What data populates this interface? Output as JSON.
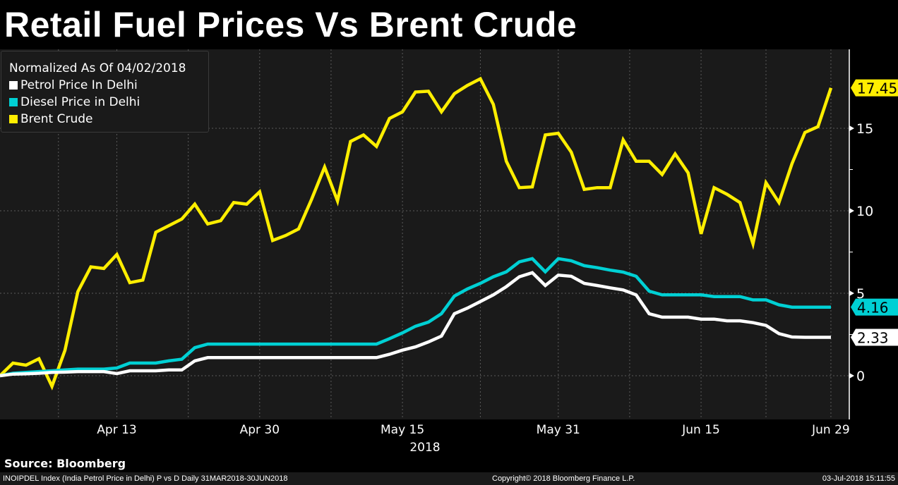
{
  "title": "Retail Fuel Prices Vs Brent Crude",
  "legend": {
    "heading": "Normalized As Of 04/02/2018",
    "items": [
      {
        "label": "Petrol Price In Delhi",
        "color": "#ffffff"
      },
      {
        "label": "Diesel Price in Delhi",
        "color": "#00d0d4"
      },
      {
        "label": "Brent Crude",
        "color": "#ffee00"
      }
    ]
  },
  "source": "Source: Bloomberg",
  "footer": {
    "left": "INOIPDEL Index (India Petrol Price in Delhi) P vs D  Daily 31MAR2018-30JUN2018",
    "center": "Copyright© 2018 Bloomberg Finance L.P.",
    "right": "03-Jul-2018 15:11:55"
  },
  "chart_data": {
    "type": "line",
    "title": "Retail Fuel Prices Vs Brent Crude",
    "xlabel": "2018",
    "ylabel": "",
    "ylim": [
      -2.5,
      20
    ],
    "y_ticks": [
      0,
      5,
      10,
      15
    ],
    "y_axis_side": "right",
    "x_ticks": [
      {
        "label": "Apr 13",
        "date": "2018-04-13"
      },
      {
        "label": "Apr 30",
        "date": "2018-04-30"
      },
      {
        "label": "May 15",
        "date": "2018-05-15"
      },
      {
        "label": "May 31",
        "date": "2018-05-31"
      },
      {
        "label": "Jun 15",
        "date": "2018-06-15"
      },
      {
        "label": "Jun 29",
        "date": "2018-06-29"
      }
    ],
    "year_label": "2018",
    "grid": true,
    "legend_position": "top-left",
    "x": [
      "2018-04-02",
      "2018-04-03",
      "2018-04-04",
      "2018-04-05",
      "2018-04-06",
      "2018-04-09",
      "2018-04-10",
      "2018-04-11",
      "2018-04-12",
      "2018-04-13",
      "2018-04-16",
      "2018-04-17",
      "2018-04-18",
      "2018-04-19",
      "2018-04-20",
      "2018-04-23",
      "2018-04-24",
      "2018-04-25",
      "2018-04-26",
      "2018-04-27",
      "2018-04-30",
      "2018-05-01",
      "2018-05-02",
      "2018-05-03",
      "2018-05-04",
      "2018-05-07",
      "2018-05-08",
      "2018-05-09",
      "2018-05-10",
      "2018-05-11",
      "2018-05-14",
      "2018-05-15",
      "2018-05-16",
      "2018-05-17",
      "2018-05-18",
      "2018-05-21",
      "2018-05-22",
      "2018-05-23",
      "2018-05-24",
      "2018-05-25",
      "2018-05-28",
      "2018-05-29",
      "2018-05-30",
      "2018-05-31",
      "2018-06-01",
      "2018-06-04",
      "2018-06-05",
      "2018-06-06",
      "2018-06-07",
      "2018-06-08",
      "2018-06-11",
      "2018-06-12",
      "2018-06-13",
      "2018-06-14",
      "2018-06-15",
      "2018-06-18",
      "2018-06-19",
      "2018-06-20",
      "2018-06-21",
      "2018-06-22",
      "2018-06-25",
      "2018-06-26",
      "2018-06-27",
      "2018-06-28",
      "2018-06-29"
    ],
    "series": [
      {
        "name": "Brent Crude",
        "color": "#ffee00",
        "last_label": "17.45",
        "values": [
          0,
          0.77,
          0.64,
          1.03,
          -0.64,
          1.54,
          5.1,
          6.6,
          6.5,
          7.35,
          5.64,
          5.8,
          8.7,
          9.1,
          9.5,
          10.4,
          9.2,
          9.4,
          10.5,
          10.4,
          11.15,
          8.2,
          8.5,
          8.9,
          10.7,
          12.65,
          10.6,
          14.2,
          14.6,
          13.9,
          15.6,
          16.0,
          17.2,
          17.25,
          16.0,
          17.1,
          17.6,
          18.0,
          16.45,
          13.0,
          11.4,
          11.45,
          14.6,
          14.7,
          13.55,
          11.3,
          11.4,
          11.4,
          14.3,
          13.0,
          13.0,
          12.2,
          13.45,
          12.3,
          8.6,
          11.4,
          11.0,
          10.5,
          8.0,
          11.7,
          10.5,
          12.85,
          14.75,
          15.1,
          17.45
        ]
      },
      {
        "name": "Diesel Price in Delhi",
        "color": "#00d0d4",
        "last_label": "4.16",
        "values": [
          0,
          0.15,
          0.2,
          0.25,
          0.3,
          0.35,
          0.4,
          0.4,
          0.4,
          0.47,
          0.77,
          0.77,
          0.77,
          0.9,
          1.0,
          1.7,
          1.92,
          1.92,
          1.92,
          1.92,
          1.92,
          1.92,
          1.92,
          1.92,
          1.92,
          1.92,
          1.92,
          1.92,
          1.92,
          1.92,
          2.25,
          2.6,
          3.0,
          3.25,
          3.76,
          4.83,
          5.26,
          5.6,
          6.0,
          6.3,
          6.9,
          7.1,
          6.3,
          7.1,
          6.97,
          6.67,
          6.55,
          6.4,
          6.28,
          6.03,
          5.13,
          4.9,
          4.9,
          4.9,
          4.9,
          4.8,
          4.8,
          4.8,
          4.6,
          4.6,
          4.3,
          4.16,
          4.16,
          4.16,
          4.16
        ]
      },
      {
        "name": "Petrol Price In Delhi",
        "color": "#ffffff",
        "last_label": "2.33",
        "values": [
          0,
          0.1,
          0.12,
          0.15,
          0.2,
          0.22,
          0.25,
          0.25,
          0.25,
          0.13,
          0.3,
          0.3,
          0.3,
          0.35,
          0.35,
          0.9,
          1.1,
          1.1,
          1.1,
          1.1,
          1.1,
          1.1,
          1.1,
          1.1,
          1.1,
          1.1,
          1.1,
          1.1,
          1.1,
          1.1,
          1.3,
          1.55,
          1.75,
          2.05,
          2.4,
          3.76,
          4.1,
          4.5,
          4.9,
          5.4,
          6.0,
          6.25,
          5.47,
          6.1,
          6.03,
          5.6,
          5.47,
          5.33,
          5.2,
          4.9,
          3.76,
          3.55,
          3.55,
          3.55,
          3.43,
          3.43,
          3.33,
          3.33,
          3.22,
          3.05,
          2.55,
          2.35,
          2.33,
          2.33,
          2.33
        ]
      }
    ]
  }
}
